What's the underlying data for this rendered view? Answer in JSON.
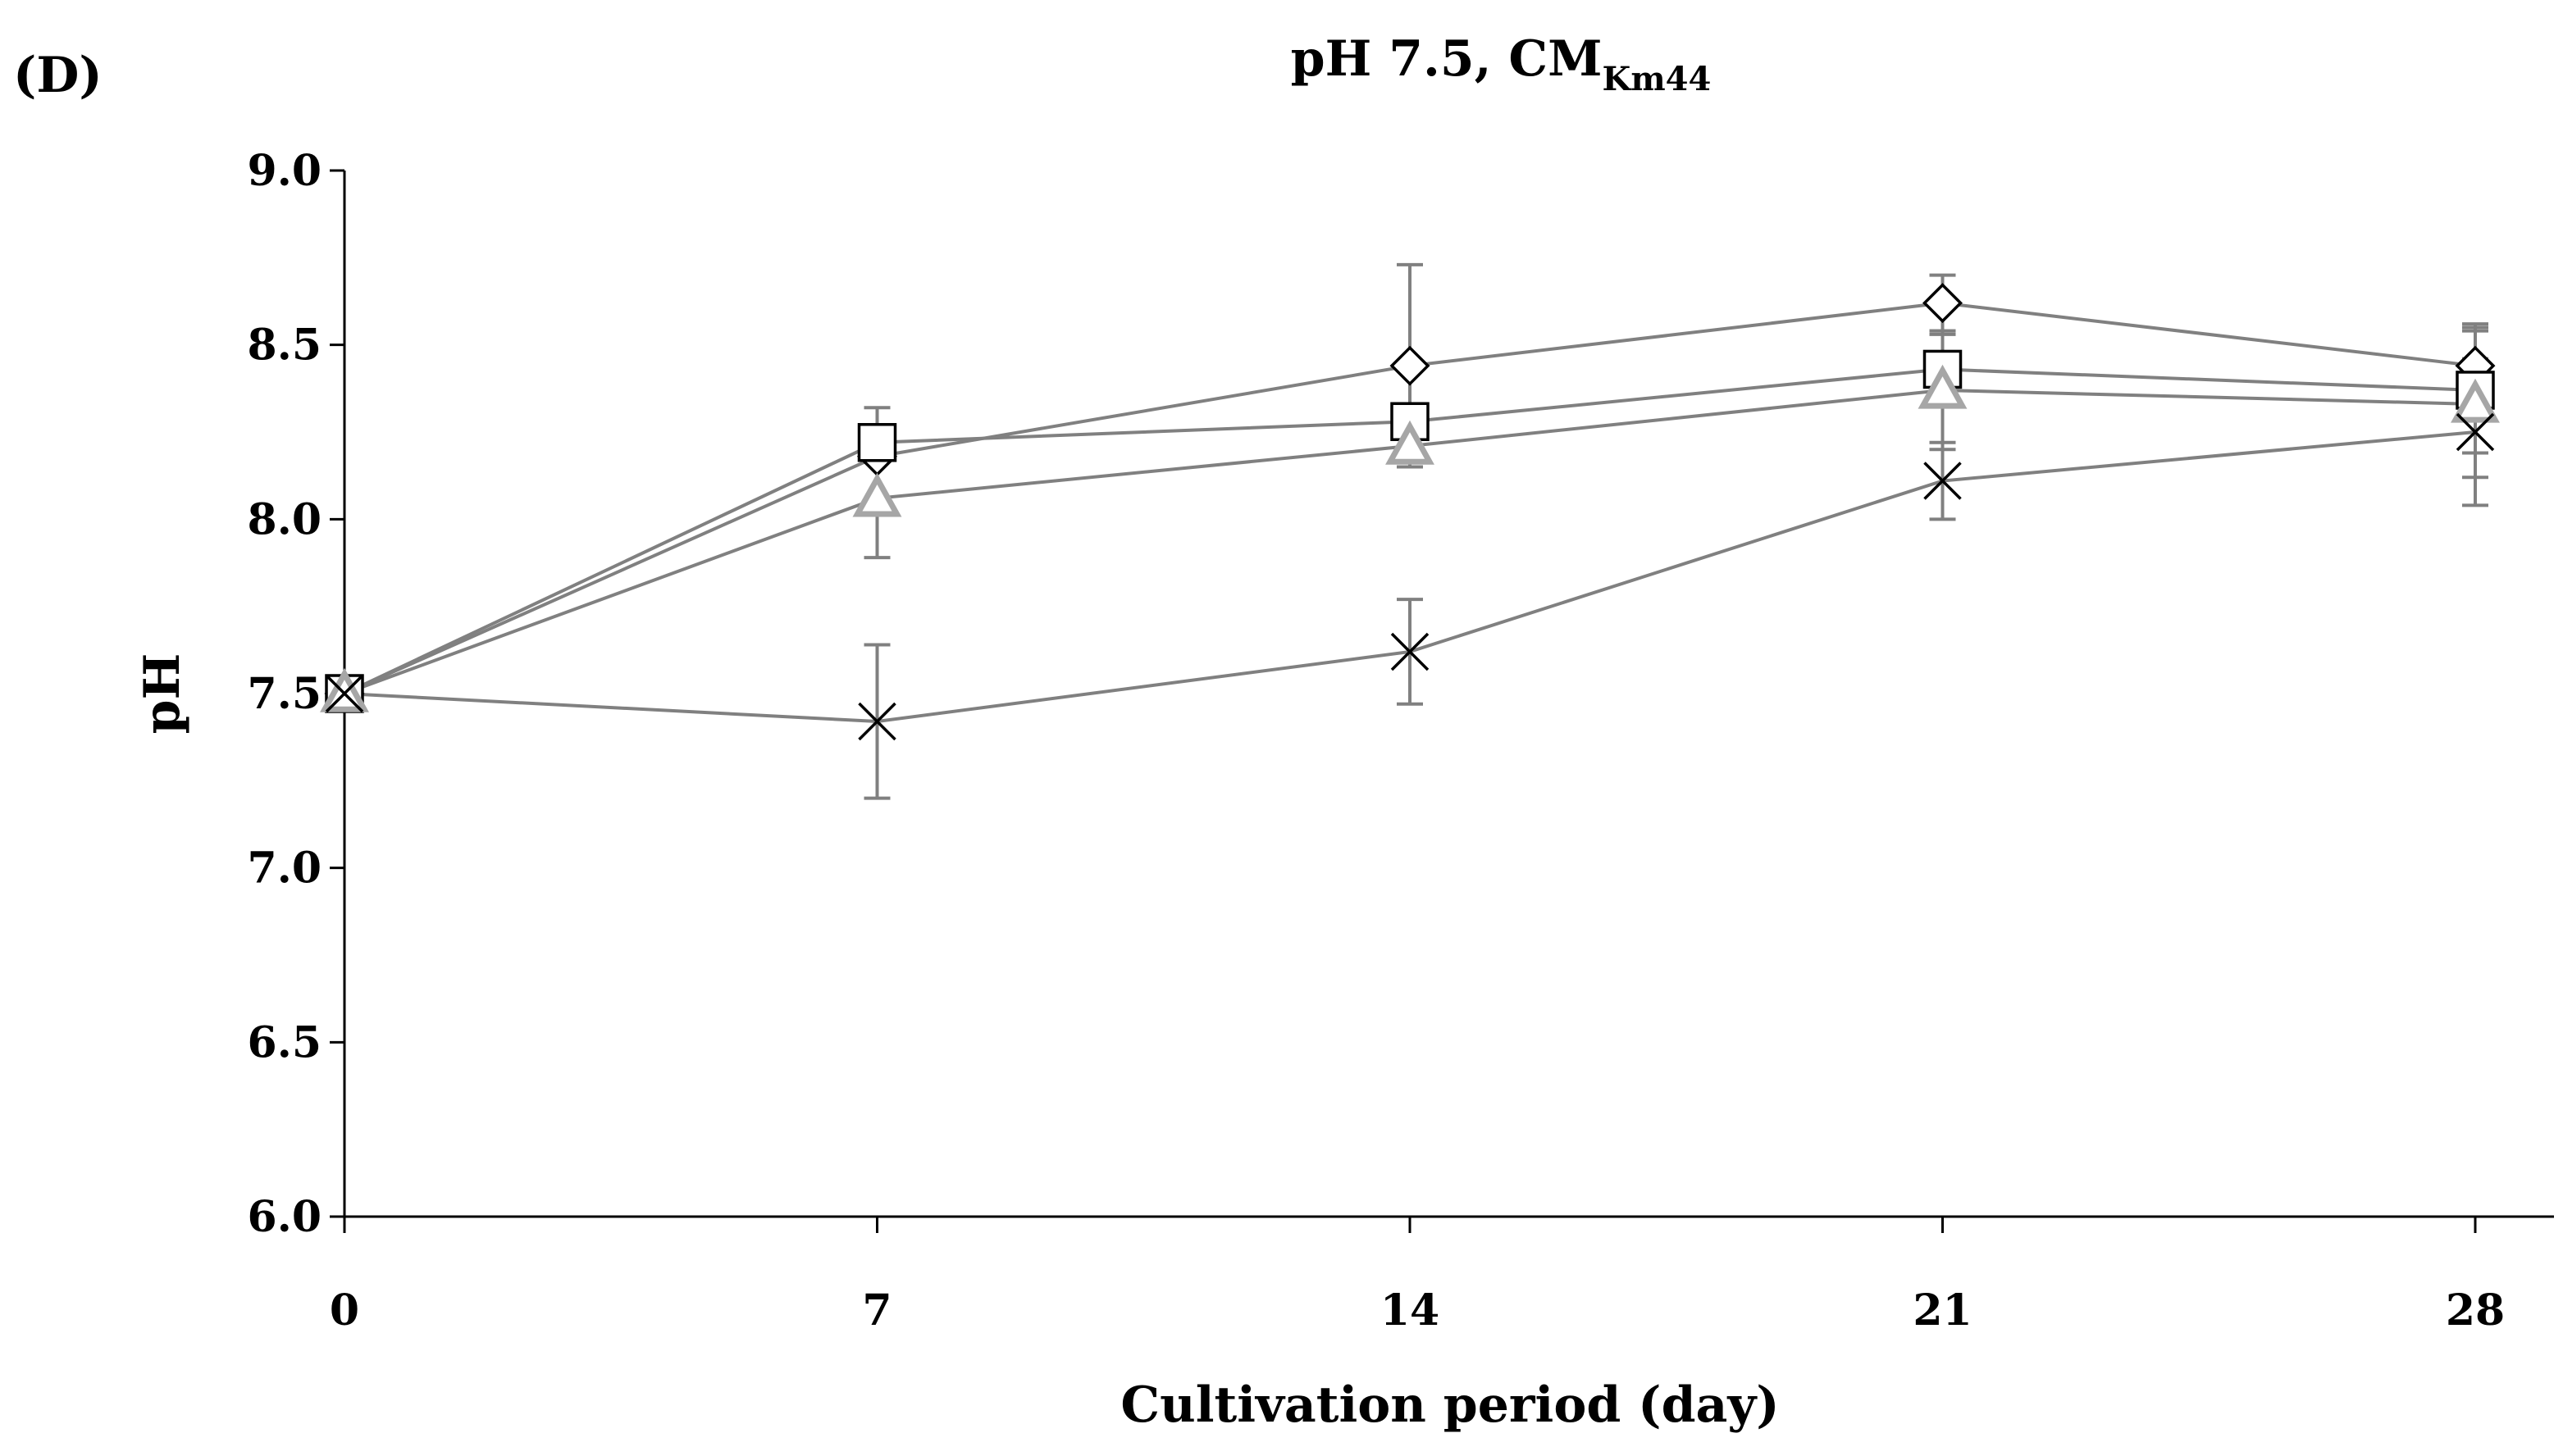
{
  "panel_label": "(D)",
  "chart_data": {
    "type": "line",
    "title": "pH 7.5, CM",
    "title_subscript": "Km44",
    "xlabel": "Cultivation period (day)",
    "ylabel": "pH",
    "x": [
      0,
      7,
      14,
      21,
      28
    ],
    "xlim": [
      0,
      30
    ],
    "ylim": [
      6.0,
      9.0
    ],
    "yticks": [
      "6.0",
      "6.5",
      "7.0",
      "7.5",
      "8.0",
      "8.5",
      "9.0"
    ],
    "xticks": [
      "0",
      "7",
      "14",
      "21",
      "28"
    ],
    "line_color": "#808080",
    "series": [
      {
        "name": "diamond",
        "marker": "diamond",
        "marker_color": "#000000",
        "values": [
          7.5,
          8.18,
          8.44,
          8.62,
          8.44
        ],
        "errors": [
          0.0,
          0.14,
          0.29,
          0.08,
          0.12
        ]
      },
      {
        "name": "square",
        "marker": "square",
        "marker_color": "#000000",
        "values": [
          7.5,
          8.22,
          8.28,
          8.43,
          8.37
        ],
        "errors": [
          0.0,
          0.0,
          0.0,
          0.1,
          0.18
        ]
      },
      {
        "name": "triangle",
        "marker": "triangle",
        "marker_color": "#a6a6a6",
        "values": [
          7.5,
          8.06,
          8.21,
          8.37,
          8.33
        ],
        "errors": [
          0.0,
          0.17,
          0.0,
          0.17,
          0.21
        ]
      },
      {
        "name": "cross",
        "marker": "cross",
        "marker_color": "#000000",
        "values": [
          7.5,
          7.42,
          7.62,
          8.11,
          8.25
        ],
        "errors": [
          0.0,
          0.22,
          0.15,
          0.11,
          0.21
        ]
      }
    ]
  }
}
